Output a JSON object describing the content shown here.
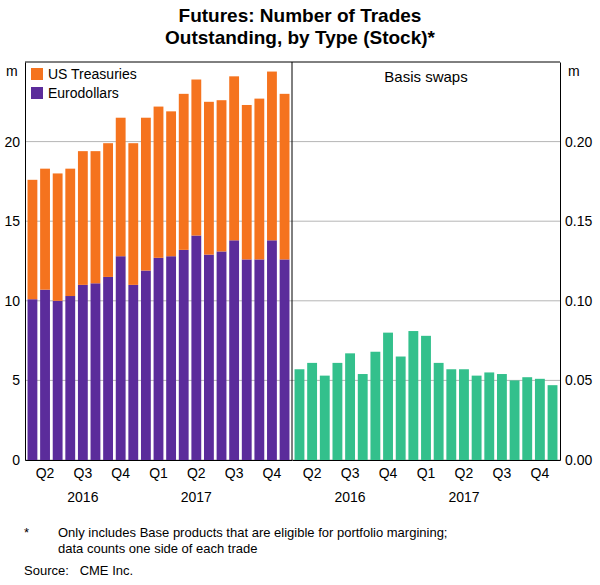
{
  "title_lines": [
    "Futures: Number of Trades",
    "Outstanding, by Type (Stock)*"
  ],
  "chart_data": [
    {
      "type": "bar",
      "stacked": true,
      "grid": true,
      "legend": "top-left",
      "ylabel": "m",
      "categories": [
        null,
        "Q2",
        null,
        null,
        "Q3",
        null,
        null,
        "Q4",
        null,
        null,
        "Q1",
        null,
        null,
        "Q2",
        null,
        null,
        "Q3",
        null,
        null,
        "Q4",
        null
      ],
      "years": [
        null,
        null,
        null,
        null,
        "2016",
        null,
        null,
        null,
        null,
        null,
        null,
        null,
        null,
        "2017",
        null,
        null,
        null,
        null,
        null,
        null,
        null
      ],
      "ylim": [
        0,
        25
      ],
      "yticks": [
        0,
        5,
        10,
        15,
        20
      ],
      "series": [
        {
          "name": "Eurodollars",
          "color": "#5b2c9b",
          "values": [
            10.1,
            10.7,
            10.0,
            10.3,
            11.0,
            11.1,
            11.5,
            12.8,
            11.0,
            11.9,
            12.7,
            12.8,
            13.2,
            14.1,
            12.9,
            13.1,
            13.8,
            12.6,
            12.6,
            13.8,
            12.6
          ]
        },
        {
          "name": "US Treasuries",
          "color": "#f5731e",
          "values": [
            7.5,
            7.6,
            8.0,
            8.0,
            8.4,
            8.3,
            8.4,
            8.7,
            8.9,
            9.6,
            9.5,
            9.1,
            9.8,
            9.8,
            9.6,
            9.5,
            10.3,
            9.7,
            10.1,
            10.6,
            10.4
          ]
        }
      ]
    },
    {
      "type": "bar",
      "grid": true,
      "title": "Basis swaps",
      "ylabel": "m",
      "color": "#33c08c",
      "categories": [
        null,
        "Q2",
        null,
        null,
        "Q3",
        null,
        null,
        "Q4",
        null,
        null,
        "Q1",
        null,
        null,
        "Q2",
        null,
        null,
        "Q3",
        null,
        null,
        "Q4",
        null
      ],
      "years": [
        null,
        null,
        null,
        null,
        "2016",
        null,
        null,
        null,
        null,
        null,
        null,
        null,
        null,
        "2017",
        null,
        null,
        null,
        null,
        null,
        null,
        null
      ],
      "ylim": [
        0,
        0.25
      ],
      "yticks": [
        {
          "value": 0,
          "label": "0.00"
        },
        {
          "value": 0.05,
          "label": "0.05"
        },
        {
          "value": 0.1,
          "label": "0.10"
        },
        {
          "value": 0.15,
          "label": "0.15"
        },
        {
          "value": 0.2,
          "label": "0.20"
        }
      ],
      "values": [
        0.057,
        0.061,
        0.053,
        0.061,
        0.067,
        0.054,
        0.068,
        0.08,
        0.065,
        0.081,
        0.078,
        0.061,
        0.057,
        0.057,
        0.053,
        0.055,
        0.054,
        0.05,
        0.052,
        0.051,
        0.047
      ]
    }
  ],
  "note_marker": "*",
  "notes": [
    "Only includes Base products that are eligible for portfolio margining;",
    "data counts one side of each trade"
  ],
  "source": "Source:   CME Inc."
}
